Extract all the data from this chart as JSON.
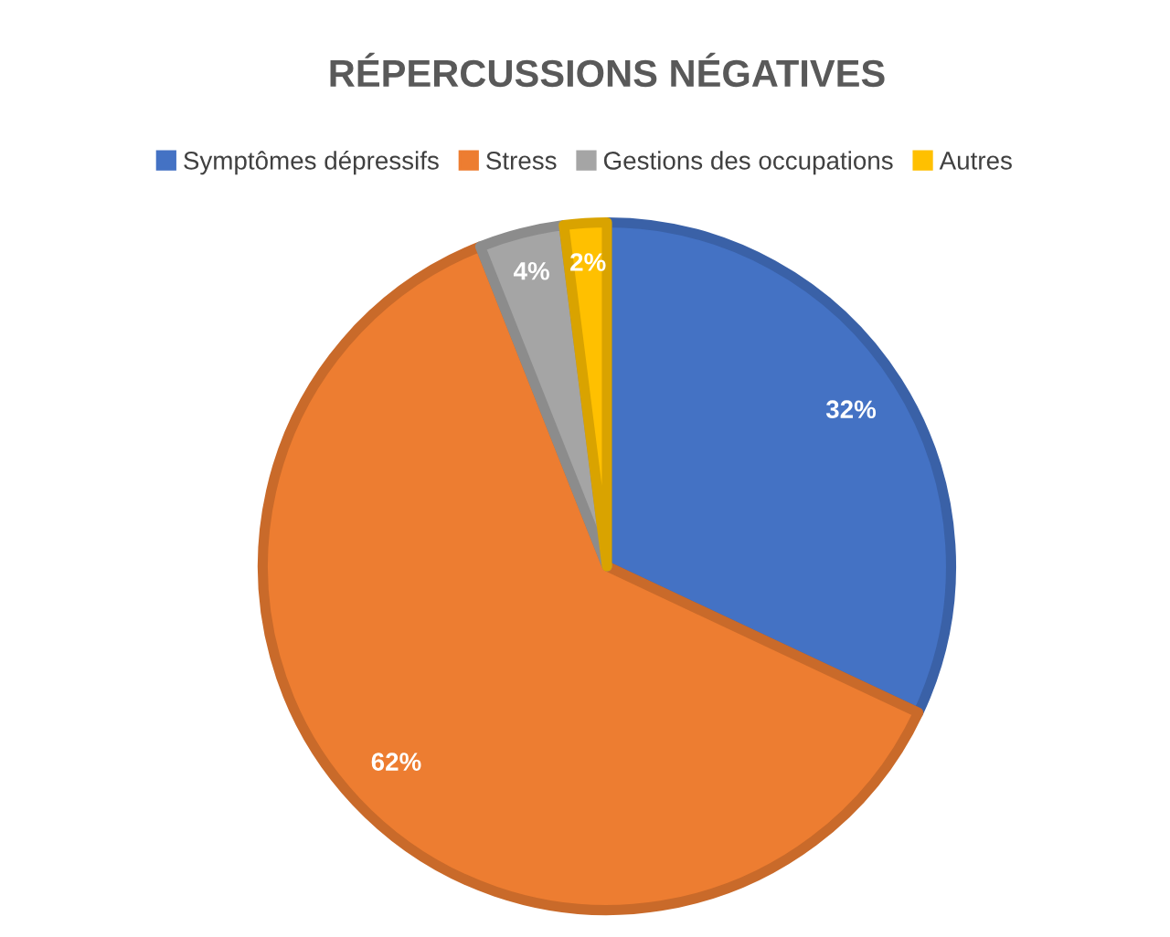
{
  "chart_data": {
    "type": "pie",
    "title": "RÉPERCUSSIONS NÉGATIVES",
    "categories": [
      "Symptômes dépressifs",
      "Stress",
      "Gestions des occupations",
      "Autres"
    ],
    "values": [
      32,
      62,
      4,
      2
    ],
    "colors": [
      "#4472c4",
      "#ed7d31",
      "#a5a5a5",
      "#ffc000"
    ],
    "value_labels": [
      "32%",
      "62%",
      "4%",
      "2%"
    ],
    "legend": "top"
  }
}
